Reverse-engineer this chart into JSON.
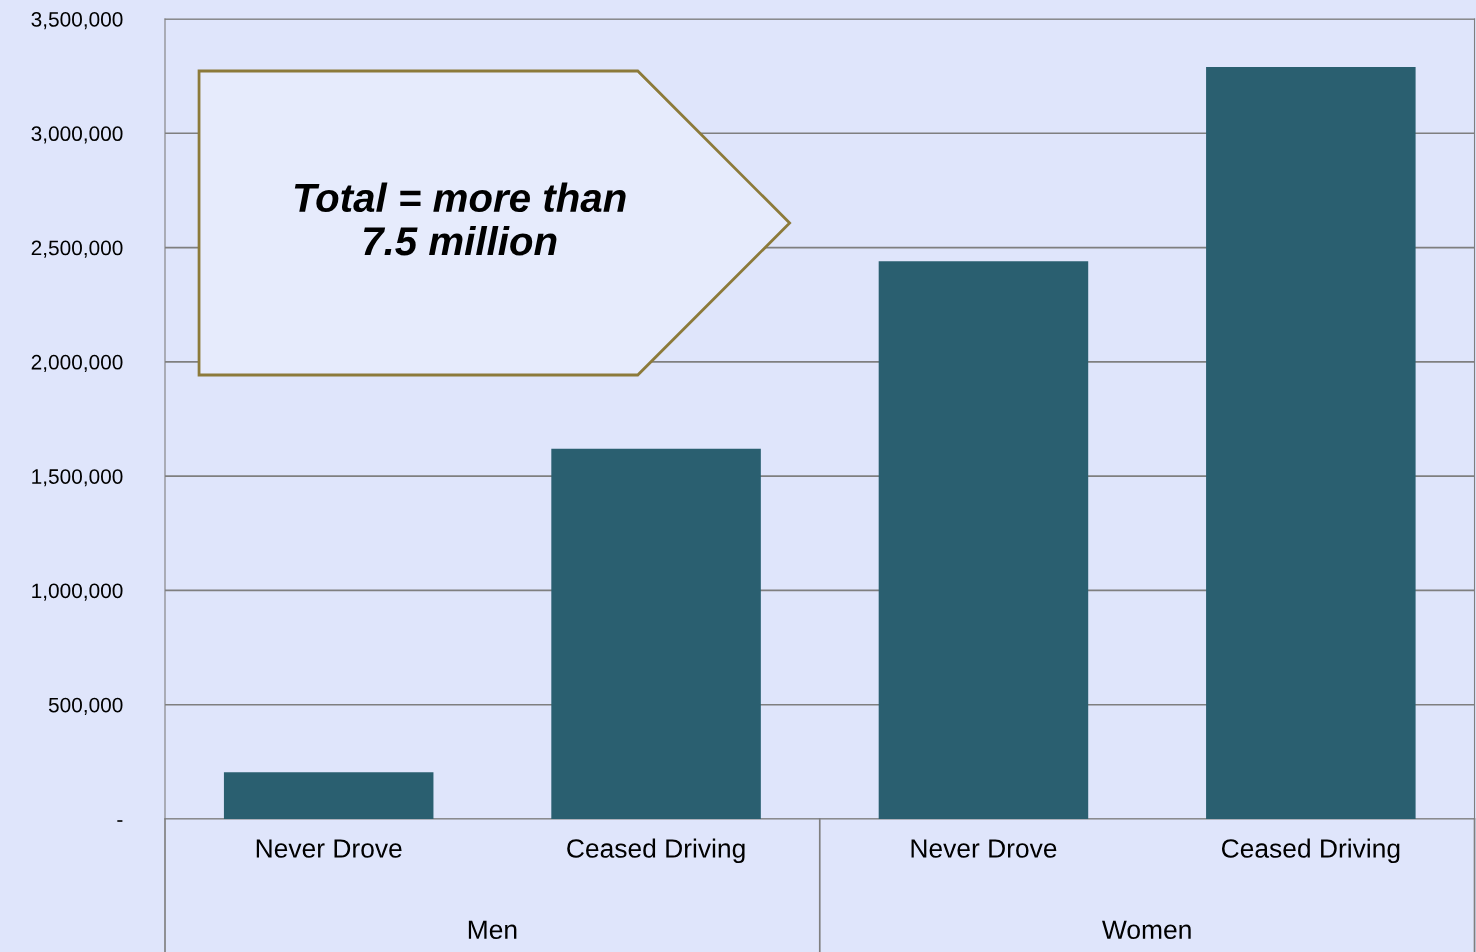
{
  "chart_data": {
    "type": "bar",
    "categories": [
      "Never Drove",
      "Ceased Driving",
      "Never Drove",
      "Ceased Driving"
    ],
    "values": [
      205000,
      1620000,
      2440000,
      3290000
    ],
    "color": "#2a5f70",
    "ylim": [
      0,
      3500000
    ],
    "yticks": [
      {
        "value": 0,
        "label": "-"
      },
      {
        "value": 500000,
        "label": "500,000"
      },
      {
        "value": 1000000,
        "label": "1,000,000"
      },
      {
        "value": 1500000,
        "label": "1,500,000"
      },
      {
        "value": 2000000,
        "label": "2,000,000"
      },
      {
        "value": 2500000,
        "label": "2,500,000"
      },
      {
        "value": 3000000,
        "label": "3,000,000"
      },
      {
        "value": 3500000,
        "label": "3,500,000"
      }
    ],
    "grid": "y",
    "annotations": [
      "Total = more than\n7.5 million",
      "Men",
      "Women"
    ]
  }
}
